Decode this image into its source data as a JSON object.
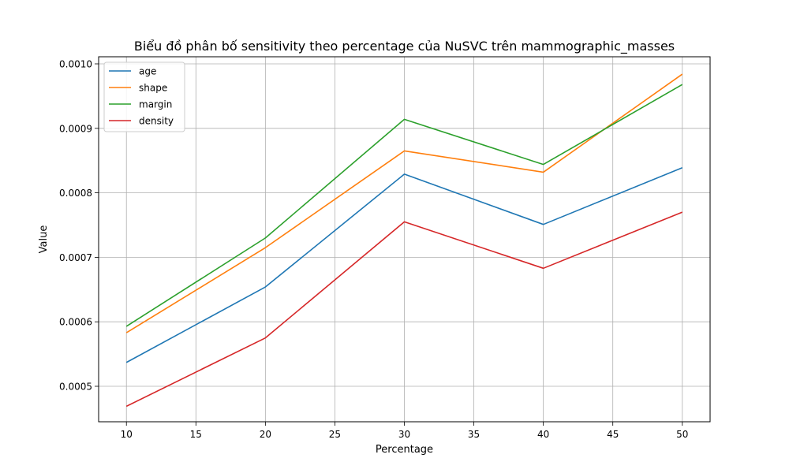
{
  "chart_data": {
    "type": "line",
    "title": "Biểu đồ phân bố sensitivity theo percentage của NuSVC trên mammographic_masses",
    "xlabel": "Percentage",
    "ylabel": "Value",
    "x": [
      10,
      20,
      30,
      40,
      50
    ],
    "xlim": [
      8,
      52
    ],
    "ylim": [
      0.000445,
      0.001011
    ],
    "xticks": [
      "10",
      "15",
      "20",
      "25",
      "30",
      "35",
      "40",
      "45",
      "50"
    ],
    "yticks": [
      "0.0005",
      "0.0006",
      "0.0007",
      "0.0008",
      "0.0009",
      "0.0010"
    ],
    "grid": true,
    "legend_position": "top-left",
    "series": [
      {
        "name": "age",
        "color": "#1f77b4",
        "values": [
          0.000537,
          0.000654,
          0.000829,
          0.000751,
          0.000839
        ]
      },
      {
        "name": "shape",
        "color": "#ff7f0e",
        "values": [
          0.000583,
          0.000715,
          0.000865,
          0.000832,
          0.000984
        ]
      },
      {
        "name": "margin",
        "color": "#2ca02c",
        "values": [
          0.000593,
          0.00073,
          0.000914,
          0.000844,
          0.000968
        ]
      },
      {
        "name": "density",
        "color": "#d62728",
        "values": [
          0.000469,
          0.000575,
          0.000755,
          0.000683,
          0.00077
        ]
      }
    ]
  }
}
